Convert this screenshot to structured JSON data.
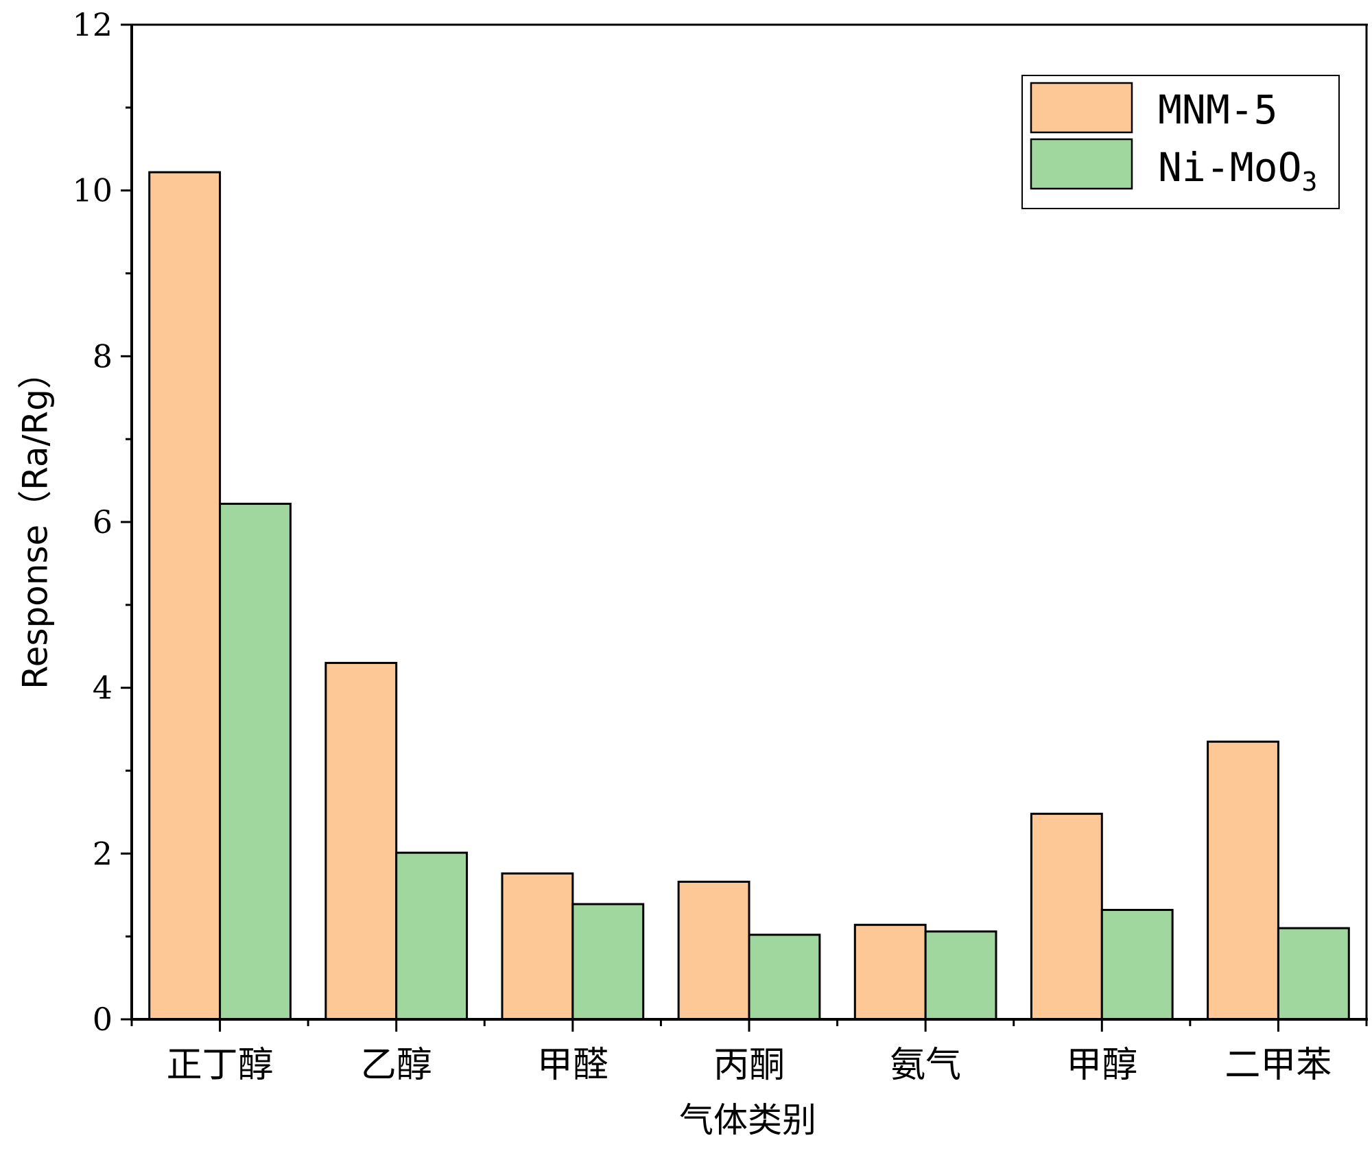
{
  "chart_data": {
    "type": "bar",
    "categories": [
      "正丁醇",
      "乙醇",
      "甲醛",
      "丙酮",
      "氨气",
      "甲醇",
      "二甲苯"
    ],
    "series": [
      {
        "name": "MNM-5",
        "values": [
          10.22,
          4.3,
          1.76,
          1.66,
          1.14,
          2.48,
          3.35
        ],
        "color": "#FEC796"
      },
      {
        "name": "Ni-MoO3",
        "values": [
          6.22,
          2.01,
          1.39,
          1.02,
          1.06,
          1.32,
          1.1
        ],
        "color": "#A0D79E"
      }
    ],
    "legend": {
      "series_1": "MNM-5",
      "series_2_main": "Ni-MoO",
      "series_2_sub": "3",
      "placement": "top-right"
    },
    "xlabel": "气体类别",
    "ylabel": "Response（Ra/Rg）",
    "ylim": [
      0,
      12
    ],
    "yticks": [
      "0",
      "2",
      "4",
      "6",
      "8",
      "10",
      "12"
    ],
    "grid": false
  }
}
